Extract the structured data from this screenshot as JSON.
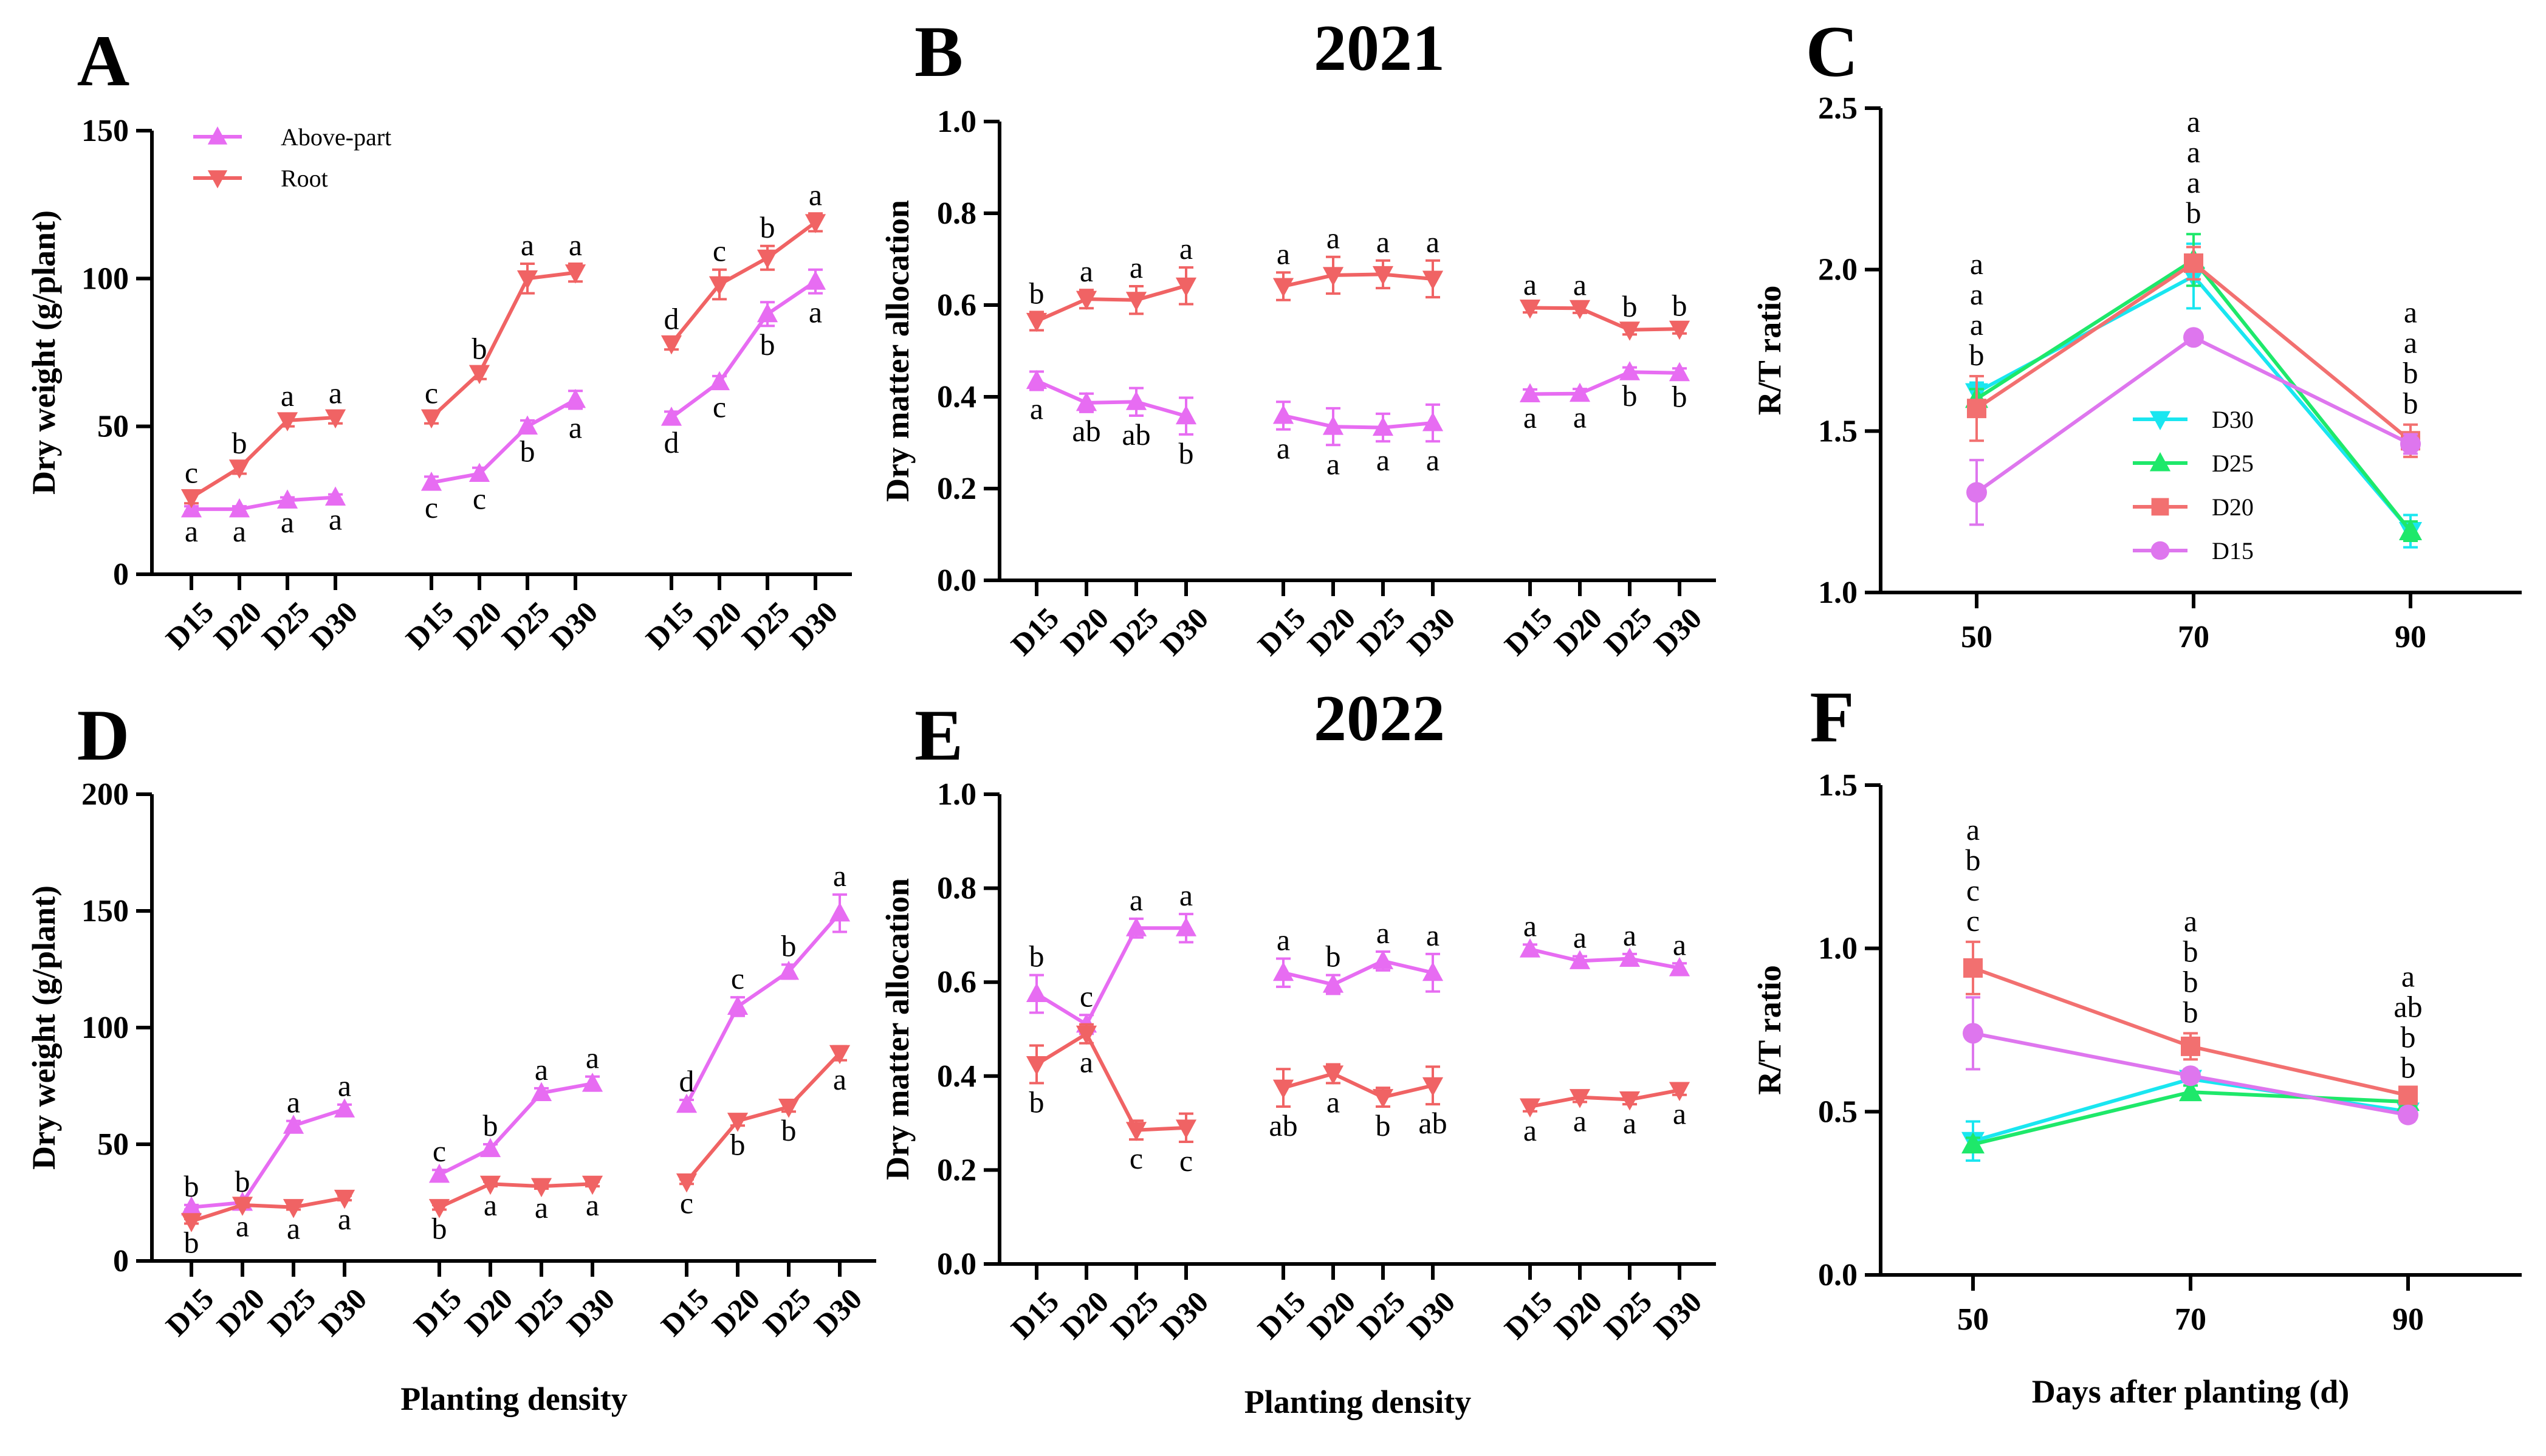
{
  "colors": {
    "above": "#e76cf2",
    "root": "#f06364",
    "D30": "#19e6f0",
    "D25": "#1ee86a",
    "D20": "#f27070",
    "D15": "#de76ee",
    "axis": "#000000"
  },
  "years": {
    "y2021": "2021",
    "y2022": "2022"
  },
  "shared": {
    "x_title_density": "Planting density",
    "x_title_days": "Days after planting (d)"
  },
  "chart_data": [
    {
      "id": "A",
      "type": "line",
      "letter": "A",
      "ylabel": "Dry  weight (g/plant)",
      "ylim": [
        0,
        150
      ],
      "yticks": [
        "0",
        "50",
        "100",
        "150"
      ],
      "legend": {
        "items": [
          {
            "name": "Above-part",
            "key": "above"
          },
          {
            "name": "Root",
            "key": "root"
          }
        ],
        "position": "top-left"
      },
      "groups": [
        {
          "categories": [
            "D15",
            "D20",
            "D25",
            "D30"
          ],
          "series": [
            {
              "key": "above",
              "values": [
                22,
                22,
                25,
                26
              ],
              "errors": [
                1,
                1,
                1,
                1
              ],
              "letters": [
                "a",
                "a",
                "a",
                "a"
              ]
            },
            {
              "key": "root",
              "values": [
                26,
                36,
                52,
                53
              ],
              "errors": [
                2,
                2,
                2,
                2
              ],
              "letters": [
                "c",
                "b",
                "a",
                "a"
              ]
            }
          ]
        },
        {
          "categories": [
            "D15",
            "D20",
            "D25",
            "D30"
          ],
          "series": [
            {
              "key": "above",
              "values": [
                31,
                34,
                50,
                59
              ],
              "errors": [
                2,
                2,
                2,
                3
              ],
              "letters": [
                "c",
                "c",
                "b",
                "a"
              ]
            },
            {
              "key": "root",
              "values": [
                53,
                68,
                100,
                102
              ],
              "errors": [
                2,
                2,
                5,
                3
              ],
              "letters": [
                "c",
                "b",
                "a",
                "a"
              ]
            }
          ]
        },
        {
          "categories": [
            "D15",
            "D20",
            "D25",
            "D30"
          ],
          "series": [
            {
              "key": "above",
              "values": [
                53,
                65,
                88,
                99
              ],
              "errors": [
                2,
                2,
                4,
                4
              ],
              "letters": [
                "d",
                "c",
                "b",
                "a"
              ]
            },
            {
              "key": "root",
              "values": [
                78,
                98,
                107,
                119
              ],
              "errors": [
                2,
                5,
                4,
                3
              ],
              "letters": [
                "d",
                "c",
                "b",
                "a"
              ]
            }
          ]
        }
      ]
    },
    {
      "id": "B",
      "type": "line",
      "letter": "B",
      "ylabel": "Dry matter allocation",
      "ylim": [
        0,
        1.0
      ],
      "yticks": [
        "0.0",
        "0.2",
        "0.4",
        "0.6",
        "0.8",
        "1.0"
      ],
      "groups": [
        {
          "categories": [
            "D15",
            "D20",
            "D25",
            "D30"
          ],
          "series": [
            {
              "key": "root",
              "values": [
                0.565,
                0.613,
                0.611,
                0.642
              ],
              "errors": [
                0.02,
                0.02,
                0.03,
                0.04
              ],
              "letters": [
                "b",
                "a",
                "a",
                "a"
              ]
            },
            {
              "key": "above",
              "values": [
                0.435,
                0.387,
                0.389,
                0.358
              ],
              "errors": [
                0.02,
                0.02,
                0.03,
                0.04
              ],
              "letters": [
                "a",
                "ab",
                "ab",
                "b"
              ]
            }
          ]
        },
        {
          "categories": [
            "D15",
            "D20",
            "D25",
            "D30"
          ],
          "series": [
            {
              "key": "root",
              "values": [
                0.641,
                0.665,
                0.667,
                0.657
              ],
              "errors": [
                0.03,
                0.04,
                0.03,
                0.04
              ],
              "letters": [
                "a",
                "a",
                "a",
                "a"
              ]
            },
            {
              "key": "above",
              "values": [
                0.359,
                0.335,
                0.333,
                0.343
              ],
              "errors": [
                0.03,
                0.04,
                0.03,
                0.04
              ],
              "letters": [
                "a",
                "a",
                "a",
                "a"
              ]
            }
          ]
        },
        {
          "categories": [
            "D15",
            "D20",
            "D25",
            "D30"
          ],
          "series": [
            {
              "key": "root",
              "values": [
                0.594,
                0.593,
                0.546,
                0.548
              ],
              "errors": [
                0.01,
                0.01,
                0.01,
                0.01
              ],
              "letters": [
                "a",
                "a",
                "b",
                "b"
              ]
            },
            {
              "key": "above",
              "values": [
                0.406,
                0.407,
                0.454,
                0.452
              ],
              "errors": [
                0.01,
                0.01,
                0.01,
                0.01
              ],
              "letters": [
                "a",
                "a",
                "b",
                "b"
              ]
            }
          ]
        }
      ]
    },
    {
      "id": "C",
      "type": "line",
      "letter": "C",
      "ylabel": "R/T ratio",
      "ylim": [
        1.0,
        2.5
      ],
      "yticks": [
        "1.0",
        "1.5",
        "2.0",
        "2.5"
      ],
      "x": [
        50,
        70,
        90
      ],
      "xticks": [
        "50",
        "70",
        "90"
      ],
      "legend": {
        "items": [
          {
            "name": "D30",
            "key": "D30"
          },
          {
            "name": "D25",
            "key": "D25"
          },
          {
            "name": "D20",
            "key": "D20"
          },
          {
            "name": "D15",
            "key": "D15"
          }
        ],
        "position": "center-right"
      },
      "series": [
        {
          "name": "D30",
          "key": "D30",
          "values": [
            1.62,
            1.98,
            1.19
          ],
          "errors": [
            0.03,
            0.1,
            0.05
          ]
        },
        {
          "name": "D25",
          "key": "D25",
          "values": [
            1.6,
            2.03,
            1.19
          ],
          "errors": [
            0.03,
            0.08,
            0.03
          ]
        },
        {
          "name": "D20",
          "key": "D20",
          "values": [
            1.57,
            2.02,
            1.47
          ],
          "errors": [
            0.1,
            0.05,
            0.05
          ]
        },
        {
          "name": "D15",
          "key": "D15",
          "values": [
            1.31,
            1.79,
            1.46
          ],
          "errors": [
            0.1,
            0.02,
            0.03
          ]
        }
      ],
      "letters": [
        [
          "a",
          "a",
          "a",
          "b"
        ],
        [
          "a",
          "a",
          "a",
          "b"
        ],
        [
          "a",
          "a",
          "b",
          "b"
        ]
      ]
    },
    {
      "id": "D",
      "type": "line",
      "letter": "D",
      "ylabel": "Dry  weight (g/plant)",
      "xlabel": "Planting density",
      "ylim": [
        0,
        200
      ],
      "yticks": [
        "0",
        "50",
        "100",
        "150",
        "200"
      ],
      "groups": [
        {
          "categories": [
            "D15",
            "D20",
            "D25",
            "D30"
          ],
          "series": [
            {
              "key": "above",
              "values": [
                23,
                25,
                58,
                65
              ],
              "errors": [
                1,
                1,
                2,
                2
              ],
              "letters": [
                "b",
                "b",
                "a",
                "a"
              ]
            },
            {
              "key": "root",
              "values": [
                17,
                24,
                23,
                27
              ],
              "errors": [
                1,
                1,
                1,
                1
              ],
              "letters": [
                "b",
                "a",
                "a",
                "a"
              ]
            }
          ]
        },
        {
          "categories": [
            "D15",
            "D20",
            "D25",
            "D30"
          ],
          "series": [
            {
              "key": "above",
              "values": [
                37,
                48,
                72,
                76
              ],
              "errors": [
                2,
                2,
                2,
                3
              ],
              "letters": [
                "c",
                "b",
                "a",
                "a"
              ]
            },
            {
              "key": "root",
              "values": [
                23,
                33,
                32,
                33
              ],
              "errors": [
                1,
                1,
                1,
                1
              ],
              "letters": [
                "b",
                "a",
                "a",
                "a"
              ]
            }
          ]
        },
        {
          "categories": [
            "D15",
            "D20",
            "D25",
            "D30"
          ],
          "series": [
            {
              "key": "above",
              "values": [
                67,
                109,
                124,
                149
              ],
              "errors": [
                2,
                4,
                3,
                8
              ],
              "letters": [
                "d",
                "c",
                "b",
                "a"
              ]
            },
            {
              "key": "root",
              "values": [
                34,
                60,
                66,
                89
              ],
              "errors": [
                1,
                2,
                2,
                3
              ],
              "letters": [
                "c",
                "b",
                "b",
                "a"
              ]
            }
          ]
        }
      ]
    },
    {
      "id": "E",
      "type": "line",
      "letter": "E",
      "ylabel": "Dry matter allocation",
      "xlabel": "Planting density",
      "ylim": [
        0,
        1.0
      ],
      "yticks": [
        "0.0",
        "0.2",
        "0.4",
        "0.6",
        "0.8",
        "1.0"
      ],
      "groups": [
        {
          "categories": [
            "D15",
            "D20",
            "D25",
            "D30"
          ],
          "series": [
            {
              "key": "above",
              "values": [
                0.575,
                0.51,
                0.715,
                0.715
              ],
              "errors": [
                0.04,
                0.02,
                0.02,
                0.03
              ],
              "letters": [
                "b",
                "c",
                "a",
                "a"
              ]
            },
            {
              "key": "root",
              "values": [
                0.425,
                0.49,
                0.285,
                0.29
              ],
              "errors": [
                0.04,
                0.02,
                0.02,
                0.03
              ],
              "letters": [
                "b",
                "a",
                "c",
                "c"
              ]
            }
          ]
        },
        {
          "categories": [
            "D15",
            "D20",
            "D25",
            "D30"
          ],
          "series": [
            {
              "key": "above",
              "values": [
                0.62,
                0.595,
                0.645,
                0.62
              ],
              "errors": [
                0.03,
                0.02,
                0.02,
                0.04
              ],
              "letters": [
                "a",
                "b",
                "a",
                "a"
              ]
            },
            {
              "key": "root",
              "values": [
                0.375,
                0.405,
                0.355,
                0.38
              ],
              "errors": [
                0.04,
                0.02,
                0.02,
                0.04
              ],
              "letters": [
                "ab",
                "a",
                "b",
                "ab"
              ]
            }
          ]
        },
        {
          "categories": [
            "D15",
            "D20",
            "D25",
            "D30"
          ],
          "series": [
            {
              "key": "above",
              "values": [
                0.67,
                0.645,
                0.65,
                0.63
              ],
              "errors": [
                0.01,
                0.01,
                0.01,
                0.01
              ],
              "letters": [
                "a",
                "a",
                "a",
                "a"
              ]
            },
            {
              "key": "root",
              "values": [
                0.335,
                0.355,
                0.35,
                0.37
              ],
              "errors": [
                0.01,
                0.01,
                0.01,
                0.01
              ],
              "letters": [
                "a",
                "a",
                "a",
                "a"
              ]
            }
          ]
        }
      ]
    },
    {
      "id": "F",
      "type": "line",
      "letter": "F",
      "ylabel": "R/T ratio",
      "xlabel": "Days after planting (d)",
      "ylim": [
        0.0,
        1.5
      ],
      "yticks": [
        "0.0",
        "0.5",
        "1.0",
        "1.5"
      ],
      "x": [
        50,
        70,
        90
      ],
      "xticks": [
        "50",
        "70",
        "90"
      ],
      "series": [
        {
          "name": "D30",
          "key": "D30",
          "values": [
            0.41,
            0.6,
            0.5
          ],
          "errors": [
            0.06,
            0.02,
            0.02
          ]
        },
        {
          "name": "D25",
          "key": "D25",
          "values": [
            0.4,
            0.56,
            0.53
          ],
          "errors": [
            0.02,
            0.02,
            0.02
          ]
        },
        {
          "name": "D20",
          "key": "D20",
          "values": [
            0.94,
            0.7,
            0.55
          ],
          "errors": [
            0.08,
            0.04,
            0.02
          ]
        },
        {
          "name": "D15",
          "key": "D15",
          "values": [
            0.74,
            0.61,
            0.49
          ],
          "errors": [
            0.11,
            0.02,
            0.02
          ]
        }
      ],
      "letters": [
        [
          "a",
          "b",
          "c",
          "c"
        ],
        [
          "a",
          "b",
          "b",
          "b"
        ],
        [
          "a",
          "ab",
          "b",
          "b"
        ]
      ]
    }
  ]
}
